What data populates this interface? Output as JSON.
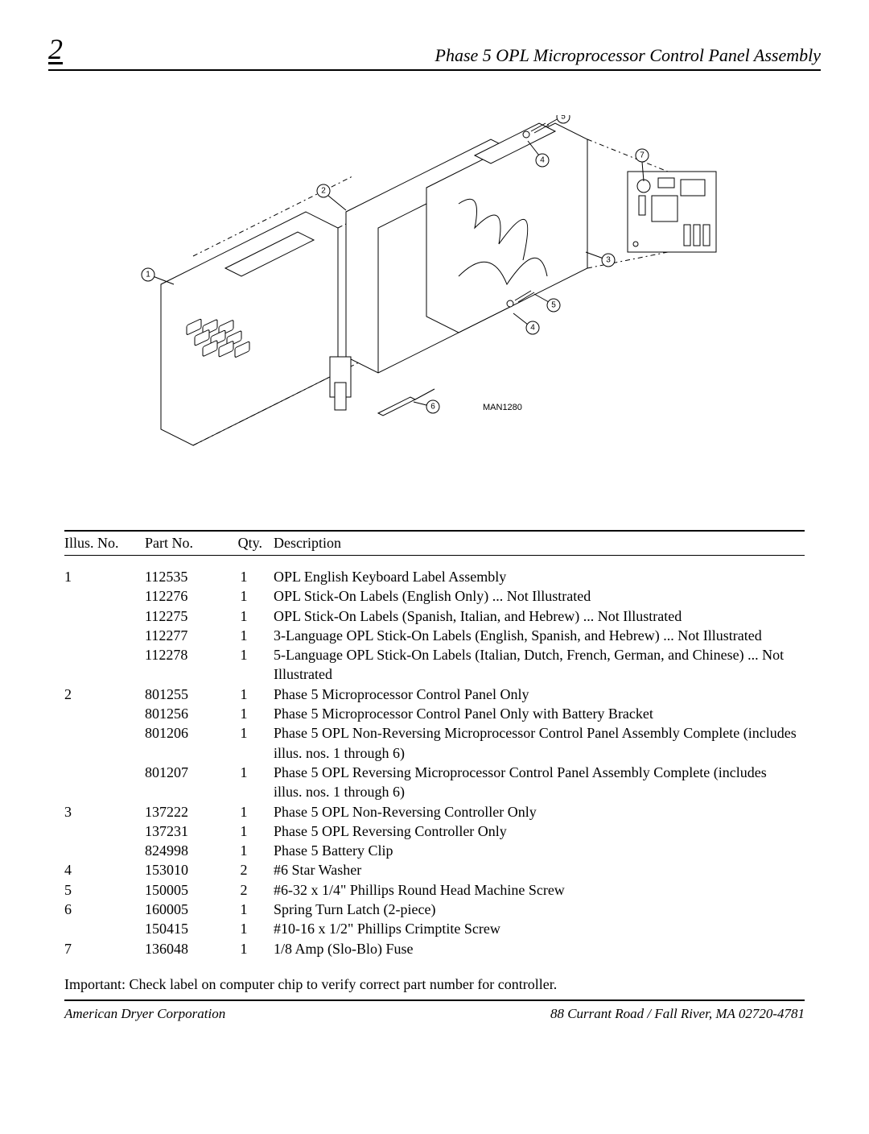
{
  "header": {
    "page_number": "2",
    "title": "Phase 5 OPL Microprocessor Control Panel Assembly"
  },
  "diagram": {
    "label": "MAN1280",
    "callouts": [
      "1",
      "2",
      "3",
      "4",
      "5",
      "6",
      "7"
    ]
  },
  "table": {
    "headers": {
      "illus": "Illus. No.",
      "part": "Part No.",
      "qty": "Qty.",
      "desc": "Description"
    },
    "rows": [
      {
        "illus": "1",
        "part": "112535",
        "qty": "1",
        "desc": "OPL English Keyboard Label Assembly"
      },
      {
        "illus": "",
        "part": "112276",
        "qty": "1",
        "desc": "OPL Stick-On Labels (English Only) ... Not Illustrated"
      },
      {
        "illus": "",
        "part": "112275",
        "qty": "1",
        "desc": "OPL Stick-On Labels (Spanish, Italian, and Hebrew) ... Not Illustrated"
      },
      {
        "illus": "",
        "part": "112277",
        "qty": "1",
        "desc": "3-Language OPL Stick-On Labels (English, Spanish, and Hebrew) ... Not Illustrated"
      },
      {
        "illus": "",
        "part": "112278",
        "qty": "1",
        "desc": "5-Language OPL Stick-On Labels (Italian, Dutch, French, German, and Chinese) ... Not Illustrated"
      },
      {
        "illus": "2",
        "part": "801255",
        "qty": "1",
        "desc": "Phase 5 Microprocessor Control Panel Only"
      },
      {
        "illus": "",
        "part": "801256",
        "qty": "1",
        "desc": "Phase 5 Microprocessor Control Panel Only with Battery Bracket"
      },
      {
        "illus": "",
        "part": "801206",
        "qty": "1",
        "desc": "Phase 5 OPL Non-Reversing Microprocessor Control Panel Assembly Complete (includes illus. nos. 1 through 6)"
      },
      {
        "illus": "",
        "part": "801207",
        "qty": "1",
        "desc": "Phase 5 OPL Reversing Microprocessor Control Panel Assembly Complete (includes illus. nos. 1 through 6)"
      },
      {
        "illus": "3",
        "part": "137222",
        "qty": "1",
        "desc": "Phase 5 OPL Non-Reversing Controller Only"
      },
      {
        "illus": "",
        "part": "137231",
        "qty": "1",
        "desc": "Phase 5 OPL Reversing Controller Only"
      },
      {
        "illus": "",
        "part": "824998",
        "qty": "1",
        "desc": "Phase 5 Battery Clip"
      },
      {
        "illus": "4",
        "part": "153010",
        "qty": "2",
        "desc": "#6 Star Washer"
      },
      {
        "illus": "5",
        "part": "150005",
        "qty": "2",
        "desc": "#6-32 x 1/4\" Phillips Round Head Machine Screw"
      },
      {
        "illus": "6",
        "part": "160005",
        "qty": "1",
        "desc": "Spring Turn Latch (2-piece)"
      },
      {
        "illus": "",
        "part": "150415",
        "qty": "1",
        "desc": "#10-16 x 1/2\" Phillips Crimptite Screw"
      },
      {
        "illus": "7",
        "part": "136048",
        "qty": "1",
        "desc": "1/8 Amp (Slo-Blo) Fuse"
      }
    ]
  },
  "note": "Important: Check label on computer chip to verify correct part number for controller.",
  "footer": {
    "left": "American Dryer Corporation",
    "right": "88 Currant Road / Fall River, MA 02720-4781"
  }
}
